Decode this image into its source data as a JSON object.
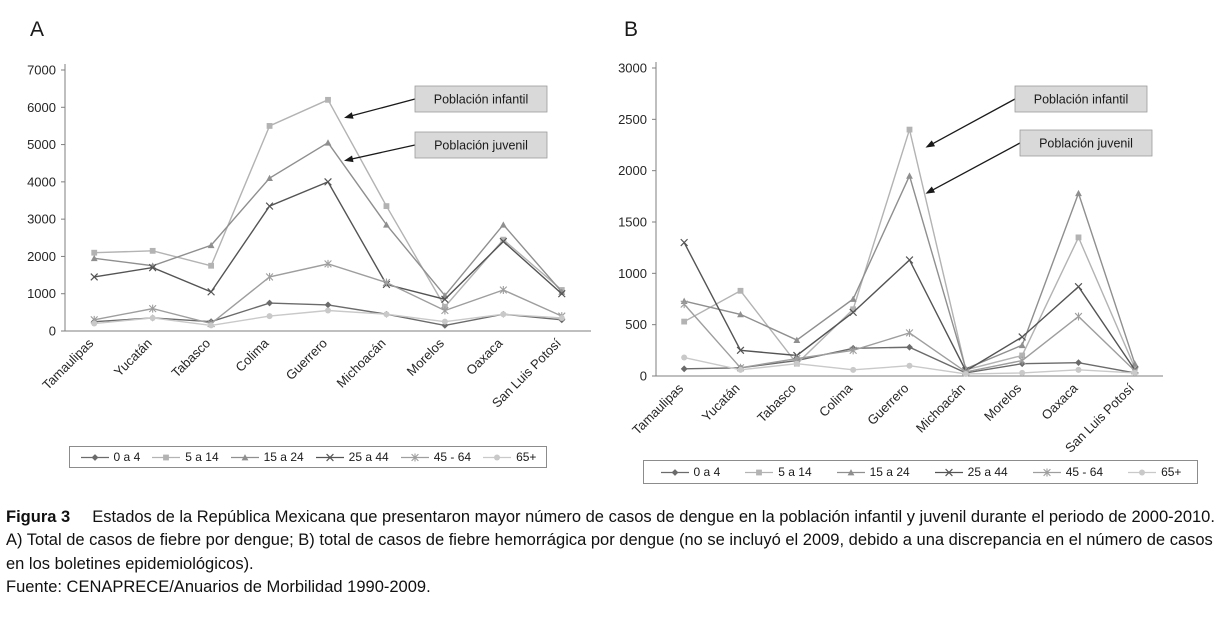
{
  "figure": {
    "caption_label": "Figura 3",
    "caption_text": "Estados de la República Mexicana que presentaron mayor número de casos de dengue en la población infantil y juvenil durante el periodo de 2000-2010. A) Total de casos de fiebre por dengue; B) total de casos de fiebre hemorrágica por dengue (no se incluyó el 2009, debido a una discrepancia en el número de casos en los boletines epidemiológicos).",
    "source_text": "Fuente: CENAPRECE/Anuarios de Morbilidad 1990-2009."
  },
  "colors": {
    "annotation_box": "#d9d9d9",
    "axis": "#7f7f7f",
    "arrow": "#1a1a1a"
  },
  "chart_data": [
    {
      "id": "A",
      "panel_label": "A",
      "type": "line",
      "title": "",
      "xlabel": "",
      "ylabel": "",
      "grid": false,
      "legend_position": "bottom",
      "ylim": [
        0,
        7000
      ],
      "ytick_step": 1000,
      "categories": [
        "Tamaulipas",
        "Yucatán",
        "Tabasco",
        "Colima",
        "Guerrero",
        "Michoacán",
        "Morelos",
        "Oaxaca",
        "San Luis Potosí"
      ],
      "series": [
        {
          "name": "0 a 4",
          "marker": "diamond",
          "color": "#6b6b6b",
          "values": [
            250,
            350,
            250,
            750,
            700,
            450,
            150,
            450,
            300
          ]
        },
        {
          "name": "5 a 14",
          "marker": "square",
          "color": "#b3b3b3",
          "values": [
            2100,
            2150,
            1750,
            5500,
            6200,
            3350,
            650,
            2450,
            1100
          ]
        },
        {
          "name": "15 a 24",
          "marker": "triangle",
          "color": "#8f8f8f",
          "values": [
            1950,
            1750,
            2300,
            4100,
            5050,
            2850,
            950,
            2850,
            1050
          ]
        },
        {
          "name": "25 a 44",
          "marker": "x",
          "color": "#545454",
          "values": [
            1450,
            1700,
            1050,
            3350,
            4000,
            1250,
            850,
            2400,
            1000
          ]
        },
        {
          "name": "45 - 64",
          "marker": "asterisk",
          "color": "#9e9e9e",
          "values": [
            300,
            600,
            200,
            1450,
            1800,
            1300,
            550,
            1100,
            400
          ]
        },
        {
          "name": "65+",
          "marker": "circle",
          "color": "#c9c9c9",
          "values": [
            200,
            350,
            150,
            400,
            550,
            450,
            250,
            450,
            350
          ]
        }
      ],
      "annotations": [
        {
          "label": "Población infantil",
          "series": "5 a 14",
          "category": "Guerrero"
        },
        {
          "label": "Población juvenil",
          "series": "15 a 24",
          "category": "Guerrero"
        }
      ]
    },
    {
      "id": "B",
      "panel_label": "B",
      "type": "line",
      "title": "",
      "xlabel": "",
      "ylabel": "",
      "grid": false,
      "legend_position": "bottom",
      "ylim": [
        0,
        3000
      ],
      "ytick_step": 500,
      "categories": [
        "Tamaulipas",
        "Yucatán",
        "Tabasco",
        "Colima",
        "Guerrero",
        "Michoacán",
        "Morelos",
        "Oaxaca",
        "San Luis Potosí"
      ],
      "series": [
        {
          "name": "0 a 4",
          "marker": "diamond",
          "color": "#6b6b6b",
          "values": [
            70,
            80,
            150,
            270,
            280,
            30,
            120,
            130,
            30
          ]
        },
        {
          "name": "5 a 14",
          "marker": "square",
          "color": "#b3b3b3",
          "values": [
            530,
            830,
            120,
            650,
            2400,
            60,
            200,
            1350,
            80
          ]
        },
        {
          "name": "15 a 24",
          "marker": "triangle",
          "color": "#8f8f8f",
          "values": [
            730,
            600,
            350,
            750,
            1950,
            70,
            300,
            1780,
            120
          ]
        },
        {
          "name": "25 a 44",
          "marker": "x",
          "color": "#545454",
          "values": [
            1300,
            250,
            200,
            620,
            1130,
            50,
            380,
            870,
            60
          ]
        },
        {
          "name": "45 - 64",
          "marker": "asterisk",
          "color": "#9e9e9e",
          "values": [
            700,
            80,
            170,
            250,
            420,
            40,
            150,
            580,
            50
          ]
        },
        {
          "name": "65+",
          "marker": "circle",
          "color": "#c9c9c9",
          "values": [
            180,
            60,
            120,
            60,
            100,
            20,
            30,
            60,
            30
          ]
        }
      ],
      "annotations": [
        {
          "label": "Población infantil",
          "series": "5 a 14",
          "category": "Guerrero"
        },
        {
          "label": "Población juvenil",
          "series": "15 a 24",
          "category": "Guerrero"
        }
      ]
    }
  ]
}
